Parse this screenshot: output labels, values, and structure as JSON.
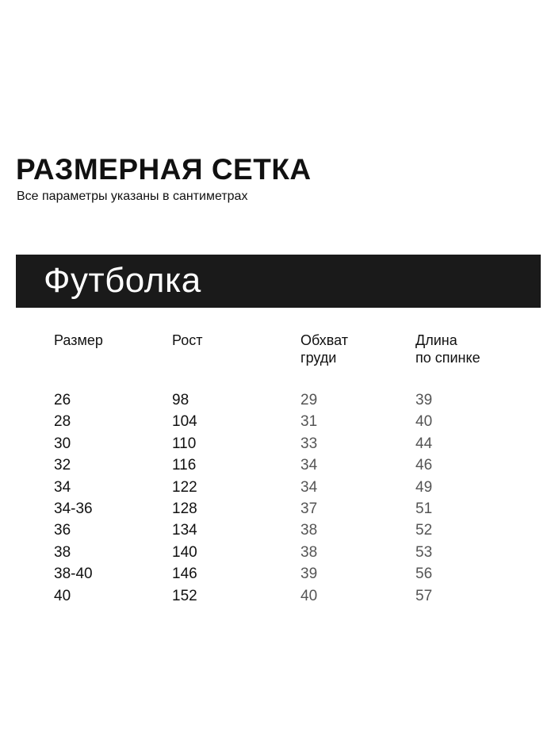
{
  "title": "РАЗМЕРНАЯ СЕТКА",
  "subtitle": "Все параметры указаны в сантиметрах",
  "section": "Футболка",
  "headers": [
    "Размер",
    "Рост",
    "Обхват\nгруди",
    "Длина\nпо спинке"
  ],
  "rows": [
    [
      "26",
      "98",
      "29",
      "39"
    ],
    [
      "28",
      "104",
      "31",
      "40"
    ],
    [
      "30",
      "110",
      "33",
      "44"
    ],
    [
      "32",
      "116",
      "34",
      "46"
    ],
    [
      "34",
      "122",
      "34",
      "49"
    ],
    [
      "34-36",
      "128",
      "37",
      "51"
    ],
    [
      "36",
      "134",
      "38",
      "52"
    ],
    [
      "38",
      "140",
      "38",
      "53"
    ],
    [
      "38-40",
      "146",
      "39",
      "56"
    ],
    [
      "40",
      "152",
      "40",
      "57"
    ]
  ]
}
